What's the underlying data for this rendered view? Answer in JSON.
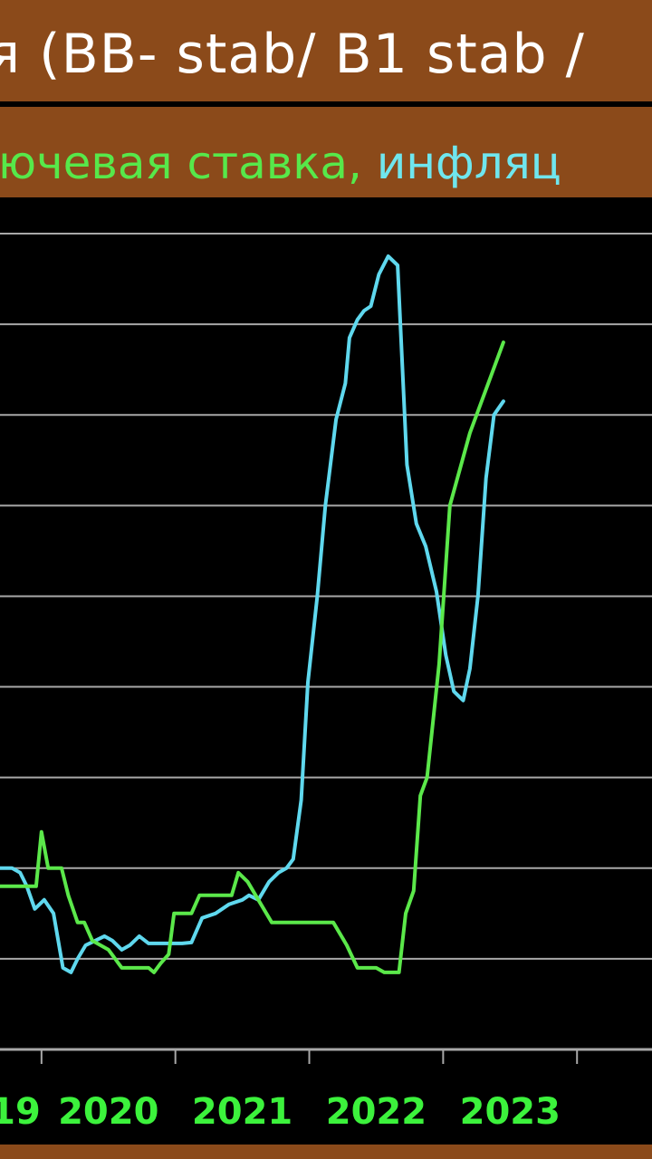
{
  "title": "я (BB- stab/ B1 stab /",
  "subtitle": {
    "part1": "ючевая ставка,",
    "part2": " инфляц",
    "color1": "#57e84a",
    "color2": "#6fe6ee"
  },
  "colors": {
    "header_bg": "#8b4a1a",
    "plot_bg": "#000000",
    "grid": "#a8a8a8",
    "key_rate": "#5be84a",
    "inflation": "#5fd8ee",
    "tick_label": "#3cf23c"
  },
  "chart_data": {
    "type": "line",
    "grid": true,
    "xlim": [
      2018.69,
      2023.56
    ],
    "ylim": [
      0,
      9
    ],
    "x_ticks": [
      "19",
      "2020",
      "2021",
      "2022",
      "2023"
    ],
    "series": [
      {
        "key": "inflation",
        "points": [
          [
            2018.69,
            2.0
          ],
          [
            2018.78,
            2.0
          ],
          [
            2018.84,
            1.95
          ],
          [
            2018.89,
            1.8
          ],
          [
            2018.95,
            1.55
          ],
          [
            2019.02,
            1.65
          ],
          [
            2019.09,
            1.5
          ],
          [
            2019.16,
            0.9
          ],
          [
            2019.22,
            0.85
          ],
          [
            2019.27,
            1.0
          ],
          [
            2019.33,
            1.15
          ],
          [
            2019.4,
            1.2
          ],
          [
            2019.47,
            1.25
          ],
          [
            2019.53,
            1.2
          ],
          [
            2019.6,
            1.1
          ],
          [
            2019.66,
            1.15
          ],
          [
            2019.73,
            1.25
          ],
          [
            2019.8,
            1.17
          ],
          [
            2019.9,
            1.17
          ],
          [
            2020.05,
            1.17
          ],
          [
            2020.12,
            1.18
          ],
          [
            2020.2,
            1.45
          ],
          [
            2020.3,
            1.5
          ],
          [
            2020.4,
            1.6
          ],
          [
            2020.5,
            1.65
          ],
          [
            2020.55,
            1.7
          ],
          [
            2020.62,
            1.65
          ],
          [
            2020.7,
            1.85
          ],
          [
            2020.77,
            1.95
          ],
          [
            2020.83,
            2.0
          ],
          [
            2020.88,
            2.1
          ],
          [
            2020.94,
            2.75
          ],
          [
            2020.99,
            4.05
          ],
          [
            2021.06,
            5.0
          ],
          [
            2021.12,
            6.0
          ],
          [
            2021.2,
            6.95
          ],
          [
            2021.27,
            7.35
          ],
          [
            2021.3,
            7.85
          ],
          [
            2021.36,
            8.05
          ],
          [
            2021.41,
            8.15
          ],
          [
            2021.46,
            8.2
          ],
          [
            2021.52,
            8.55
          ],
          [
            2021.59,
            8.75
          ],
          [
            2021.66,
            8.65
          ],
          [
            2021.73,
            6.45
          ],
          [
            2021.8,
            5.8
          ],
          [
            2021.87,
            5.55
          ],
          [
            2021.95,
            5.05
          ],
          [
            2022.02,
            4.35
          ],
          [
            2022.08,
            3.95
          ],
          [
            2022.15,
            3.85
          ],
          [
            2022.2,
            4.2
          ],
          [
            2022.26,
            5.0
          ],
          [
            2022.32,
            6.3
          ],
          [
            2022.38,
            7.0
          ],
          [
            2022.45,
            7.15
          ]
        ]
      },
      {
        "key": "key_rate",
        "points": [
          [
            2018.69,
            1.8
          ],
          [
            2018.85,
            1.8
          ],
          [
            2018.96,
            1.8
          ],
          [
            2019.0,
            2.4
          ],
          [
            2019.05,
            2.0
          ],
          [
            2019.15,
            2.0
          ],
          [
            2019.2,
            1.7
          ],
          [
            2019.27,
            1.4
          ],
          [
            2019.32,
            1.4
          ],
          [
            2019.38,
            1.2
          ],
          [
            2019.5,
            1.1
          ],
          [
            2019.6,
            0.9
          ],
          [
            2019.7,
            0.9
          ],
          [
            2019.8,
            0.9
          ],
          [
            2019.84,
            0.85
          ],
          [
            2019.89,
            0.95
          ],
          [
            2019.95,
            1.05
          ],
          [
            2019.99,
            1.5
          ],
          [
            2020.05,
            1.5
          ],
          [
            2020.12,
            1.5
          ],
          [
            2020.18,
            1.7
          ],
          [
            2020.3,
            1.7
          ],
          [
            2020.42,
            1.7
          ],
          [
            2020.47,
            1.95
          ],
          [
            2020.54,
            1.85
          ],
          [
            2020.62,
            1.65
          ],
          [
            2020.72,
            1.4
          ],
          [
            2020.82,
            1.4
          ],
          [
            2020.98,
            1.4
          ],
          [
            2021.08,
            1.4
          ],
          [
            2021.18,
            1.4
          ],
          [
            2021.28,
            1.15
          ],
          [
            2021.36,
            0.9
          ],
          [
            2021.44,
            0.9
          ],
          [
            2021.5,
            0.9
          ],
          [
            2021.56,
            0.85
          ],
          [
            2021.62,
            0.85
          ],
          [
            2021.67,
            0.85
          ],
          [
            2021.72,
            1.5
          ],
          [
            2021.78,
            1.75
          ],
          [
            2021.83,
            2.8
          ],
          [
            2021.88,
            3.0
          ],
          [
            2021.97,
            4.25
          ],
          [
            2022.05,
            6.0
          ],
          [
            2022.2,
            6.8
          ],
          [
            2022.35,
            7.4
          ],
          [
            2022.45,
            7.8
          ]
        ]
      }
    ]
  }
}
